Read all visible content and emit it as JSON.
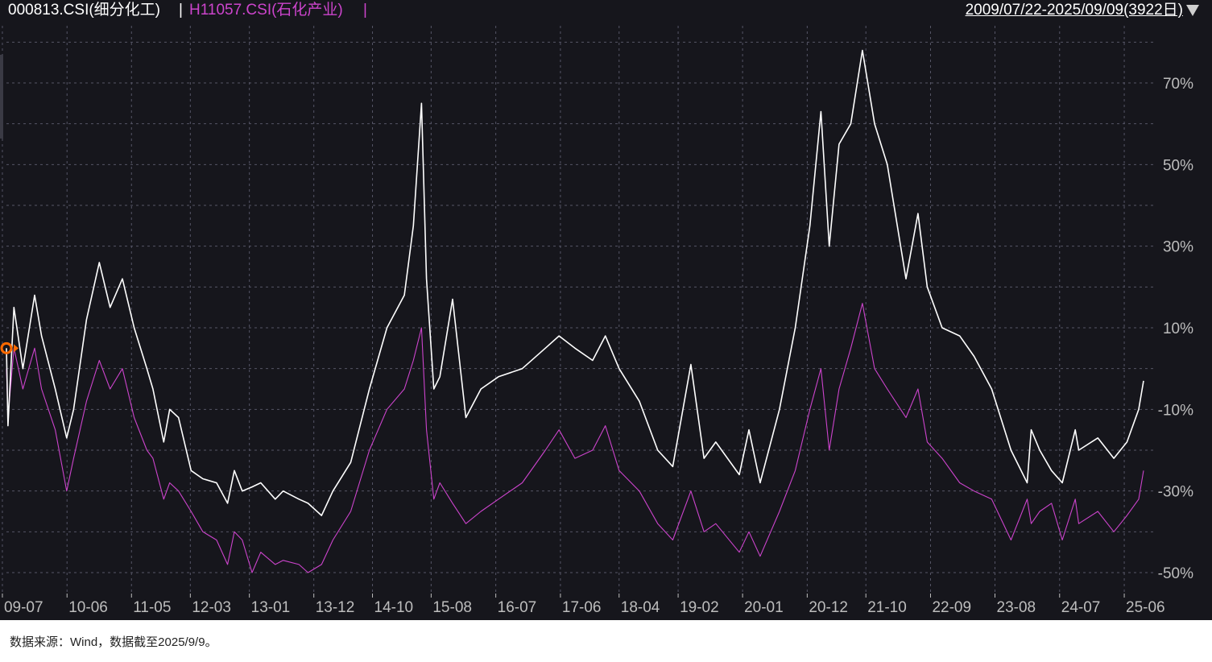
{
  "header": {
    "series_1": "000813.CSI(细分化工)",
    "separator": "|",
    "series_2": "H11057.CSI(石化产业)",
    "date_range": "2009/07/22-2025/09/09(3922日)"
  },
  "footer": {
    "source_note": "数据来源：Wind，数据截至2025/9/9。"
  },
  "colors": {
    "background": "#16161c",
    "grid": "#555566",
    "axis_text": "#bdbdbd",
    "series_1": "#ffffff",
    "series_2": "#cc44cc",
    "marker": "#ff6a00"
  },
  "chart_data": {
    "type": "line",
    "title": "",
    "xlabel": "",
    "ylabel": "",
    "ylim": [
      -55,
      82
    ],
    "y_unit": "%",
    "xlim": [
      "2009-07-22",
      "2025-09-09"
    ],
    "yticks": [
      70,
      50,
      30,
      10,
      -10,
      -30,
      -50
    ],
    "ytick_labels": [
      "70%",
      "50%",
      "30%",
      "10%",
      "-10%",
      "-30%",
      "-50%"
    ],
    "x_ticks": [
      "2009-07",
      "2010-06",
      "2011-05",
      "2012-03",
      "2013-01",
      "2013-12",
      "2014-10",
      "2015-08",
      "2016-07",
      "2017-06",
      "2018-04",
      "2019-02",
      "2020-01",
      "2020-12",
      "2021-10",
      "2022-09",
      "2023-08",
      "2024-07",
      "2025-06"
    ],
    "x_tick_labels": [
      "09-07",
      "10-06",
      "11-05",
      "12-03",
      "13-01",
      "13-12",
      "14-10",
      "15-08",
      "16-07",
      "17-06",
      "18-04",
      "19-02",
      "20-01",
      "20-12",
      "21-10",
      "22-09",
      "23-08",
      "24-07",
      "25-06"
    ],
    "grid": true,
    "legend": "top-left header",
    "series": [
      {
        "name": "000813.CSI(细分化工)",
        "x": [
          "2009-07-22",
          "2009-07-30",
          "2009-08-30",
          "2009-10-15",
          "2009-12-15",
          "2010-01-20",
          "2010-04-01",
          "2010-05-30",
          "2010-07-05",
          "2010-09-10",
          "2010-11-15",
          "2011-01-10",
          "2011-03-15",
          "2011-05-15",
          "2011-07-20",
          "2011-08-20",
          "2011-10-15",
          "2011-11-15",
          "2011-12-31",
          "2012-03-05",
          "2012-05-05",
          "2012-07-15",
          "2012-09-10",
          "2012-10-15",
          "2012-11-25",
          "2013-01-15",
          "2013-03-01",
          "2013-05-15",
          "2013-06-25",
          "2013-09-15",
          "2013-11-01",
          "2014-01-10",
          "2014-03-10",
          "2014-06-10",
          "2014-09-15",
          "2014-12-15",
          "2015-03-15",
          "2015-05-01",
          "2015-06-12",
          "2015-07-08",
          "2015-08-15",
          "2015-09-15",
          "2015-11-20",
          "2016-01-28",
          "2016-04-15",
          "2016-07-15",
          "2016-11-15",
          "2017-03-15",
          "2017-05-25",
          "2017-08-15",
          "2017-11-15",
          "2018-01-20",
          "2018-04-01",
          "2018-07-15",
          "2018-10-18",
          "2019-01-04",
          "2019-04-08",
          "2019-06-15",
          "2019-08-15",
          "2019-12-15",
          "2020-02-03",
          "2020-04-01",
          "2020-07-10",
          "2020-09-30",
          "2020-12-15",
          "2021-02-10",
          "2021-03-25",
          "2021-05-15",
          "2021-07-15",
          "2021-09-13",
          "2021-11-15",
          "2022-01-20",
          "2022-04-27",
          "2022-06-28",
          "2022-08-15",
          "2022-10-31",
          "2023-01-30",
          "2023-04-15",
          "2023-07-15",
          "2023-10-23",
          "2024-01-15",
          "2024-02-05",
          "2024-03-20",
          "2024-05-20",
          "2024-07-15",
          "2024-09-20",
          "2024-10-08",
          "2025-01-15",
          "2025-04-08",
          "2025-06-15",
          "2025-08-15",
          "2025-09-09"
        ],
        "y": [
          5,
          -14,
          15,
          0,
          18,
          8,
          -5,
          -17,
          -10,
          12,
          26,
          15,
          22,
          10,
          0,
          -5,
          -18,
          -10,
          -12,
          -25,
          -27,
          -28,
          -33,
          -25,
          -30,
          -29,
          -28,
          -32,
          -30,
          -32,
          -33,
          -36,
          -30,
          -23,
          -5,
          10,
          18,
          35,
          65,
          22,
          -5,
          -2,
          17,
          -12,
          -5,
          -2,
          0,
          5,
          8,
          5,
          2,
          8,
          0,
          -8,
          -20,
          -24,
          1,
          -22,
          -18,
          -26,
          -15,
          -28,
          -10,
          10,
          35,
          63,
          30,
          55,
          60,
          78,
          60,
          50,
          22,
          38,
          20,
          10,
          8,
          3,
          -5,
          -20,
          -28,
          -15,
          -20,
          -25,
          -28,
          -15,
          -20,
          -17,
          -22,
          -18,
          -10,
          -3
        ]
      },
      {
        "name": "H11057.CSI(石化产业)",
        "x": [
          "2009-07-22",
          "2009-07-30",
          "2009-08-30",
          "2009-10-15",
          "2009-12-15",
          "2010-01-20",
          "2010-04-01",
          "2010-05-30",
          "2010-07-05",
          "2010-09-10",
          "2010-11-15",
          "2011-01-10",
          "2011-03-15",
          "2011-05-15",
          "2011-07-20",
          "2011-08-20",
          "2011-10-15",
          "2011-11-15",
          "2011-12-31",
          "2012-03-05",
          "2012-05-05",
          "2012-07-15",
          "2012-09-10",
          "2012-10-15",
          "2012-11-25",
          "2013-01-15",
          "2013-03-01",
          "2013-05-15",
          "2013-06-25",
          "2013-09-15",
          "2013-11-01",
          "2014-01-10",
          "2014-03-10",
          "2014-06-10",
          "2014-09-15",
          "2014-12-15",
          "2015-03-15",
          "2015-05-01",
          "2015-06-12",
          "2015-07-08",
          "2015-08-15",
          "2015-09-15",
          "2015-11-20",
          "2016-01-28",
          "2016-04-15",
          "2016-07-15",
          "2016-11-15",
          "2017-03-15",
          "2017-05-25",
          "2017-08-15",
          "2017-11-15",
          "2018-01-20",
          "2018-04-01",
          "2018-07-15",
          "2018-10-18",
          "2019-01-04",
          "2019-04-08",
          "2019-06-15",
          "2019-08-15",
          "2019-12-15",
          "2020-02-03",
          "2020-04-01",
          "2020-07-10",
          "2020-09-30",
          "2020-12-15",
          "2021-02-10",
          "2021-03-25",
          "2021-05-15",
          "2021-07-15",
          "2021-09-13",
          "2021-11-15",
          "2022-01-20",
          "2022-04-27",
          "2022-06-28",
          "2022-08-15",
          "2022-10-31",
          "2023-01-30",
          "2023-04-15",
          "2023-07-15",
          "2023-10-23",
          "2024-01-15",
          "2024-02-05",
          "2024-03-20",
          "2024-05-20",
          "2024-07-15",
          "2024-09-20",
          "2024-10-08",
          "2025-01-15",
          "2025-04-08",
          "2025-06-15",
          "2025-08-15",
          "2025-09-09"
        ],
        "y": [
          0,
          -12,
          5,
          -5,
          5,
          -5,
          -15,
          -30,
          -22,
          -8,
          2,
          -5,
          0,
          -12,
          -20,
          -22,
          -32,
          -28,
          -30,
          -35,
          -40,
          -42,
          -48,
          -40,
          -42,
          -50,
          -45,
          -48,
          -47,
          -48,
          -50,
          -48,
          -42,
          -35,
          -20,
          -10,
          -5,
          2,
          10,
          -15,
          -32,
          -28,
          -33,
          -38,
          -35,
          -32,
          -28,
          -20,
          -15,
          -22,
          -20,
          -14,
          -25,
          -30,
          -38,
          -42,
          -30,
          -40,
          -38,
          -45,
          -40,
          -46,
          -35,
          -25,
          -10,
          0,
          -20,
          -5,
          5,
          16,
          0,
          -5,
          -12,
          -5,
          -18,
          -22,
          -28,
          -30,
          -32,
          -42,
          -32,
          -38,
          -35,
          -33,
          -42,
          -32,
          -38,
          -35,
          -40,
          -36,
          -32,
          -25
        ]
      }
    ]
  }
}
